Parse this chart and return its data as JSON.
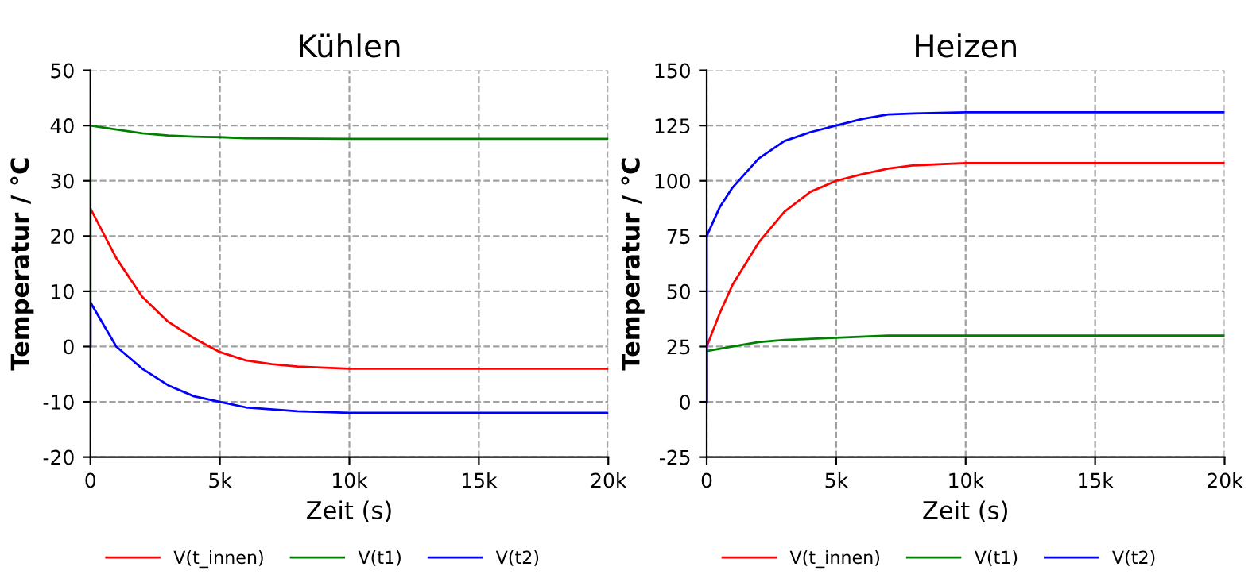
{
  "chart_data": [
    {
      "type": "line",
      "title": "Kühlen",
      "xlabel": "Zeit (s)",
      "ylabel": "Temperatur / °C",
      "xlim": [
        0,
        20000
      ],
      "ylim": [
        -20,
        50
      ],
      "xticks": [
        0,
        {
          "value": 5000,
          "label": "5k"
        },
        {
          "value": 10000,
          "label": "10k"
        },
        {
          "value": 15000,
          "label": "15k"
        },
        {
          "value": 20000,
          "label": "20k"
        }
      ],
      "yticks": [
        -20,
        -10,
        0,
        10,
        20,
        30,
        40,
        50
      ],
      "grid": true,
      "legend": "bottom",
      "marker": "none",
      "line_style": "solid",
      "series": [
        {
          "name": "V(t_innen)",
          "color": "#ff0000",
          "x": [
            0,
            0,
            1000,
            2000,
            3000,
            4000,
            5000,
            6000,
            7000,
            8000,
            10000,
            20000
          ],
          "values": [
            0,
            25,
            16,
            9,
            4.5,
            1.5,
            -1,
            -2.5,
            -3.2,
            -3.6,
            -4,
            -4
          ]
        },
        {
          "name": "V(t1)",
          "color": "#008000",
          "x": [
            0,
            0,
            1000,
            2000,
            3000,
            4000,
            5000,
            6000,
            10000,
            20000
          ],
          "values": [
            0,
            40,
            39.3,
            38.6,
            38.2,
            38,
            37.9,
            37.7,
            37.6,
            37.6
          ]
        },
        {
          "name": "V(t2)",
          "color": "#0000ff",
          "x": [
            0,
            0,
            1000,
            2000,
            3000,
            4000,
            5000,
            6000,
            8000,
            10000,
            20000
          ],
          "values": [
            0,
            8,
            0,
            -4,
            -7,
            -9,
            -10,
            -11,
            -11.7,
            -12,
            -12
          ]
        }
      ]
    },
    {
      "type": "line",
      "title": "Heizen",
      "xlabel": "Zeit (s)",
      "ylabel": "Temperatur / °C",
      "xlim": [
        0,
        20000
      ],
      "ylim": [
        -25,
        150
      ],
      "xticks": [
        0,
        {
          "value": 5000,
          "label": "5k"
        },
        {
          "value": 10000,
          "label": "10k"
        },
        {
          "value": 15000,
          "label": "15k"
        },
        {
          "value": 20000,
          "label": "20k"
        }
      ],
      "yticks": [
        -25,
        0,
        25,
        50,
        75,
        100,
        125,
        150
      ],
      "grid": true,
      "legend": "bottom",
      "marker": "none",
      "line_style": "solid",
      "series": [
        {
          "name": "V(t_innen)",
          "color": "#ff0000",
          "x": [
            0,
            0,
            500,
            1000,
            2000,
            3000,
            4000,
            5000,
            6000,
            7000,
            8000,
            10000,
            20000
          ],
          "values": [
            0,
            25,
            40,
            53,
            72,
            86,
            95,
            100,
            103,
            105.5,
            107,
            108,
            108
          ]
        },
        {
          "name": "V(t1)",
          "color": "#008000",
          "x": [
            0,
            0,
            1000,
            2000,
            3000,
            5000,
            7000,
            20000
          ],
          "values": [
            0,
            23,
            25,
            27,
            28,
            29,
            30,
            30
          ]
        },
        {
          "name": "V(t2)",
          "color": "#0000ff",
          "x": [
            0,
            0,
            500,
            1000,
            2000,
            3000,
            4000,
            5000,
            6000,
            7000,
            8000,
            10000,
            20000
          ],
          "values": [
            0,
            75,
            88,
            97,
            110,
            118,
            122,
            125,
            128,
            130,
            130.5,
            131,
            131
          ]
        }
      ]
    }
  ]
}
